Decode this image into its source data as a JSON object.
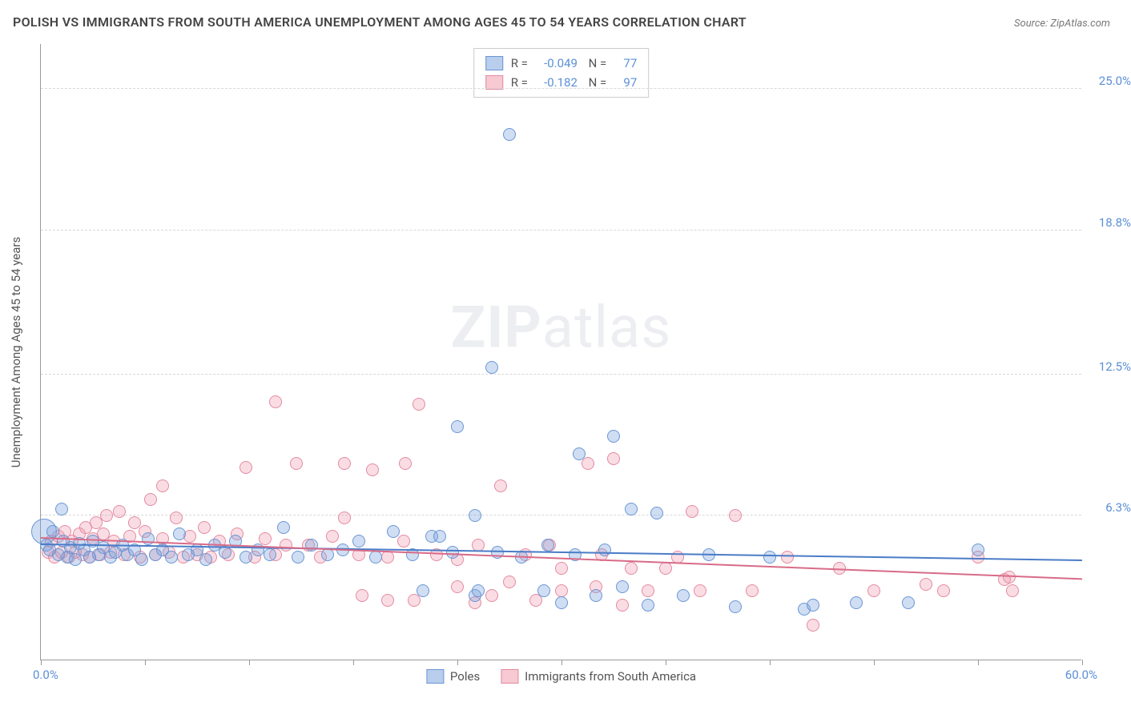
{
  "title": "POLISH VS IMMIGRANTS FROM SOUTH AMERICA UNEMPLOYMENT AMONG AGES 45 TO 54 YEARS CORRELATION CHART",
  "source": "Source: ZipAtlas.com",
  "watermark_bold": "ZIP",
  "watermark_light": "atlas",
  "ylabel": "Unemployment Among Ages 45 to 54 years",
  "chart": {
    "type": "scatter",
    "xlim": [
      0,
      60
    ],
    "ylim": [
      0,
      27
    ],
    "x_start_label": "0.0%",
    "x_end_label": "60.0%",
    "xticks": [
      0,
      6,
      12,
      18,
      24,
      30,
      36,
      42,
      48,
      54,
      60
    ],
    "y_gridlines": [
      {
        "v": 6.3,
        "label": "6.3%"
      },
      {
        "v": 12.5,
        "label": "12.5%"
      },
      {
        "v": 18.8,
        "label": "18.8%"
      },
      {
        "v": 25.0,
        "label": "25.0%"
      }
    ],
    "background_color": "#ffffff",
    "grid_color": "#d8d8d8",
    "series": [
      {
        "key": "poles",
        "label": "Poles",
        "color_fill": "rgba(120,160,220,0.35)",
        "color_stroke": "#6a96d4",
        "swatch_fill": "#b9cdec",
        "swatch_border": "#6a96d4",
        "marker_r": 8,
        "stats": {
          "R": "-0.049",
          "N": "77"
        },
        "trend": {
          "y0": 5.0,
          "y1": 4.3,
          "color": "#4a7cc7"
        },
        "points": [
          [
            0.3,
            5.0
          ],
          [
            0.5,
            4.8
          ],
          [
            0.7,
            5.6
          ],
          [
            1.0,
            4.6
          ],
          [
            1.2,
            6.6
          ],
          [
            1.3,
            5.2
          ],
          [
            1.5,
            4.5
          ],
          [
            1.7,
            4.9
          ],
          [
            2.0,
            4.4
          ],
          [
            2.2,
            5.1
          ],
          [
            2.5,
            4.8
          ],
          [
            2.8,
            4.5
          ],
          [
            3.0,
            5.2
          ],
          [
            3.3,
            4.6
          ],
          [
            3.6,
            4.9
          ],
          [
            4.0,
            4.5
          ],
          [
            4.3,
            4.7
          ],
          [
            4.7,
            5.0
          ],
          [
            5.0,
            4.6
          ],
          [
            5.4,
            4.8
          ],
          [
            5.8,
            4.4
          ],
          [
            6.2,
            5.3
          ],
          [
            6.6,
            4.6
          ],
          [
            7.0,
            4.8
          ],
          [
            7.5,
            4.5
          ],
          [
            8.0,
            5.5
          ],
          [
            8.5,
            4.6
          ],
          [
            9.0,
            4.8
          ],
          [
            9.5,
            4.4
          ],
          [
            10.0,
            5.0
          ],
          [
            10.6,
            4.7
          ],
          [
            11.2,
            5.2
          ],
          [
            11.8,
            4.5
          ],
          [
            12.5,
            4.8
          ],
          [
            13.2,
            4.6
          ],
          [
            14.0,
            5.8
          ],
          [
            14.8,
            4.5
          ],
          [
            15.6,
            5.0
          ],
          [
            16.5,
            4.6
          ],
          [
            17.4,
            4.8
          ],
          [
            18.3,
            5.2
          ],
          [
            19.3,
            4.5
          ],
          [
            20.3,
            5.6
          ],
          [
            21.4,
            4.6
          ],
          [
            22.0,
            3.0
          ],
          [
            22.5,
            5.4
          ],
          [
            23.0,
            5.4
          ],
          [
            23.7,
            4.7
          ],
          [
            24.0,
            10.2
          ],
          [
            25.0,
            2.8
          ],
          [
            25.0,
            6.3
          ],
          [
            25.2,
            3.0
          ],
          [
            26.0,
            12.8
          ],
          [
            26.3,
            4.7
          ],
          [
            27.0,
            23.0
          ],
          [
            27.7,
            4.5
          ],
          [
            29.0,
            3.0
          ],
          [
            29.2,
            5.0
          ],
          [
            30.0,
            2.5
          ],
          [
            30.8,
            4.6
          ],
          [
            31.0,
            9.0
          ],
          [
            32.0,
            2.8
          ],
          [
            32.5,
            4.8
          ],
          [
            33.0,
            9.8
          ],
          [
            33.5,
            3.2
          ],
          [
            34.0,
            6.6
          ],
          [
            35.0,
            2.4
          ],
          [
            35.5,
            6.4
          ],
          [
            37.0,
            2.8
          ],
          [
            38.5,
            4.6
          ],
          [
            40.0,
            2.3
          ],
          [
            42.0,
            4.5
          ],
          [
            44.0,
            2.2
          ],
          [
            44.5,
            2.4
          ],
          [
            47.0,
            2.5
          ],
          [
            50.0,
            2.5
          ],
          [
            54.0,
            4.8
          ]
        ],
        "big_points": [
          {
            "x": 0.2,
            "y": 5.6,
            "r": 16
          }
        ]
      },
      {
        "key": "immigrants",
        "label": "Immigrants from South America",
        "color_fill": "rgba(240,150,170,0.32)",
        "color_stroke": "#e48aa0",
        "swatch_fill": "#f6c9d3",
        "swatch_border": "#e48aa0",
        "marker_r": 8,
        "stats": {
          "R": "-0.182",
          "N": "97"
        },
        "trend": {
          "y0": 5.3,
          "y1": 3.5,
          "color": "#d86b88"
        },
        "points": [
          [
            0.4,
            4.7
          ],
          [
            0.6,
            5.2
          ],
          [
            0.8,
            4.5
          ],
          [
            1.0,
            5.4
          ],
          [
            1.2,
            4.7
          ],
          [
            1.4,
            5.6
          ],
          [
            1.6,
            4.5
          ],
          [
            1.8,
            5.2
          ],
          [
            2.0,
            4.7
          ],
          [
            2.2,
            5.5
          ],
          [
            2.4,
            4.6
          ],
          [
            2.6,
            5.8
          ],
          [
            2.8,
            4.5
          ],
          [
            3.0,
            5.3
          ],
          [
            3.2,
            6.0
          ],
          [
            3.4,
            4.6
          ],
          [
            3.6,
            5.5
          ],
          [
            3.8,
            6.3
          ],
          [
            4.0,
            4.7
          ],
          [
            4.2,
            5.2
          ],
          [
            4.5,
            6.5
          ],
          [
            4.8,
            4.6
          ],
          [
            5.1,
            5.4
          ],
          [
            5.4,
            6.0
          ],
          [
            5.7,
            4.5
          ],
          [
            6.0,
            5.6
          ],
          [
            6.3,
            7.0
          ],
          [
            6.6,
            4.6
          ],
          [
            7.0,
            5.3
          ],
          [
            7.0,
            7.6
          ],
          [
            7.4,
            4.7
          ],
          [
            7.8,
            6.2
          ],
          [
            8.2,
            4.5
          ],
          [
            8.6,
            5.4
          ],
          [
            9.0,
            4.6
          ],
          [
            9.4,
            5.8
          ],
          [
            9.8,
            4.5
          ],
          [
            10.3,
            5.2
          ],
          [
            10.8,
            4.6
          ],
          [
            11.3,
            5.5
          ],
          [
            11.8,
            8.4
          ],
          [
            12.3,
            4.5
          ],
          [
            12.9,
            5.3
          ],
          [
            13.5,
            4.6
          ],
          [
            13.5,
            11.3
          ],
          [
            14.1,
            5.0
          ],
          [
            14.7,
            8.6
          ],
          [
            15.4,
            5.0
          ],
          [
            16.1,
            4.5
          ],
          [
            16.8,
            5.4
          ],
          [
            17.5,
            6.2
          ],
          [
            17.5,
            8.6
          ],
          [
            18.3,
            4.6
          ],
          [
            18.5,
            2.8
          ],
          [
            19.1,
            8.3
          ],
          [
            20.0,
            4.5
          ],
          [
            20.0,
            2.6
          ],
          [
            20.9,
            5.2
          ],
          [
            21.0,
            8.6
          ],
          [
            21.5,
            2.6
          ],
          [
            21.8,
            11.2
          ],
          [
            22.8,
            4.6
          ],
          [
            24.0,
            3.2
          ],
          [
            24.0,
            4.4
          ],
          [
            25.0,
            2.5
          ],
          [
            25.2,
            5.0
          ],
          [
            26.0,
            2.8
          ],
          [
            26.5,
            7.6
          ],
          [
            27.0,
            3.4
          ],
          [
            27.9,
            4.6
          ],
          [
            28.5,
            2.6
          ],
          [
            29.3,
            5.0
          ],
          [
            30.0,
            3.0
          ],
          [
            30.0,
            4.0
          ],
          [
            31.5,
            8.6
          ],
          [
            32.0,
            3.2
          ],
          [
            32.3,
            4.6
          ],
          [
            33.0,
            8.8
          ],
          [
            33.5,
            2.4
          ],
          [
            34.0,
            4.0
          ],
          [
            35.0,
            3.0
          ],
          [
            36.0,
            4.0
          ],
          [
            36.7,
            4.5
          ],
          [
            37.5,
            6.5
          ],
          [
            38.0,
            3.0
          ],
          [
            40.0,
            6.3
          ],
          [
            41.0,
            3.0
          ],
          [
            43.0,
            4.5
          ],
          [
            44.5,
            1.5
          ],
          [
            46.0,
            4.0
          ],
          [
            48.0,
            3.0
          ],
          [
            51.0,
            3.3
          ],
          [
            52.0,
            3.0
          ],
          [
            54.0,
            4.5
          ],
          [
            55.5,
            3.5
          ],
          [
            56.0,
            3.0
          ],
          [
            55.8,
            3.6
          ]
        ]
      }
    ]
  }
}
